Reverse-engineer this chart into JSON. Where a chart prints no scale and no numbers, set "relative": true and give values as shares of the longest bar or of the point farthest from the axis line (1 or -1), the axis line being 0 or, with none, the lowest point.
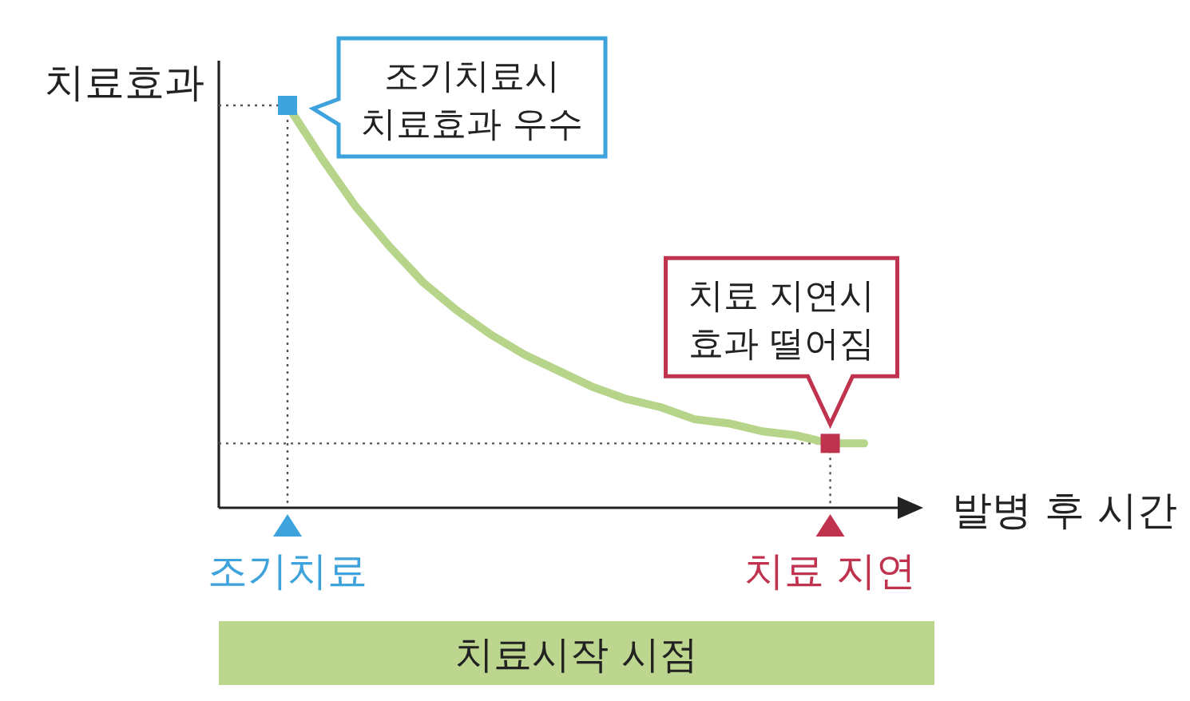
{
  "chart_data": {
    "type": "line",
    "relative": true,
    "ylabel": "치료효과",
    "xlabel": "발병 후 시간",
    "categories": [
      "조기치료",
      null,
      null,
      null,
      null,
      null,
      null,
      null,
      null,
      null,
      null,
      null,
      null,
      null,
      null,
      null,
      "치료 지연",
      null
    ],
    "series": [
      {
        "color": "#b6d48a",
        "line_style": "solid",
        "values": [
          1,
          0.87,
          0.75,
          0.65,
          0.56,
          0.49,
          0.43,
          0.38,
          0.34,
          0.3,
          0.27,
          0.25,
          0.22,
          0.21,
          0.19,
          0.18,
          0.16,
          0.16
        ]
      },
      {
        "type": "scatter",
        "marker": "square",
        "x": [
          "조기치료",
          "치료 지연"
        ],
        "values": [
          1,
          0.16
        ],
        "colors": [
          "#3ea3dc",
          "#c0334f"
        ]
      }
    ],
    "annotations": [
      {
        "text": "조기치료시\n치료효과 우수",
        "x": "조기치료",
        "y": 1
      },
      {
        "text": "치료 지연시\n효과 떨어짐",
        "x": "치료 지연",
        "y": 0.16
      },
      "치료시작 시점"
    ]
  }
}
